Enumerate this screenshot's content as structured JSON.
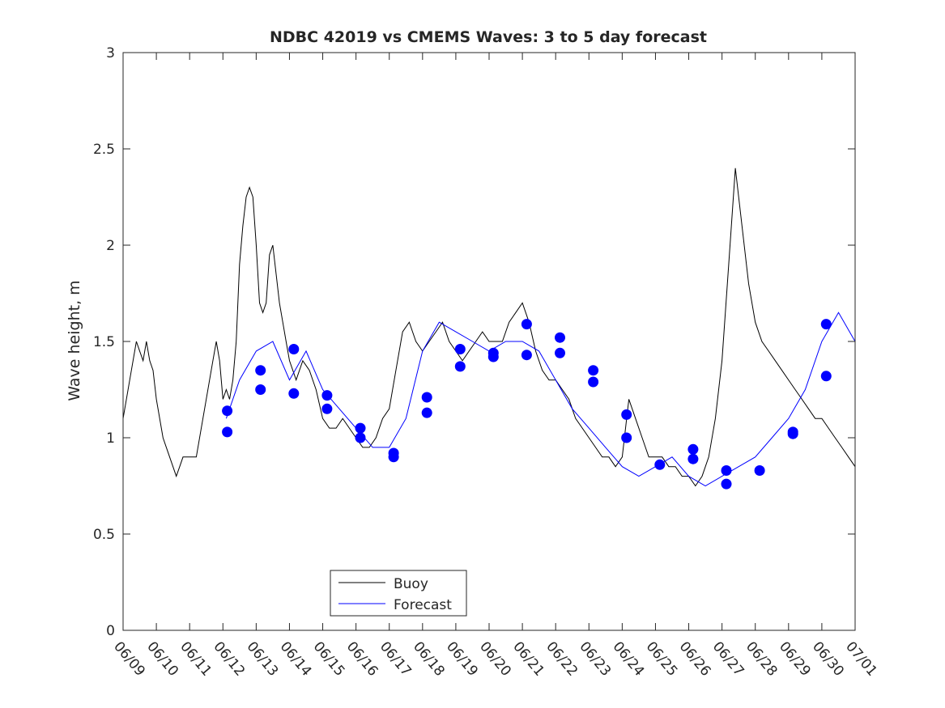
{
  "chart_data": {
    "type": "line",
    "title": "NDBC 42019 vs CMEMS Waves: 3 to 5 day forecast",
    "xlabel": "",
    "ylabel": "Wave height, m",
    "xlim": [
      0,
      22
    ],
    "ylim": [
      0,
      3
    ],
    "grid": false,
    "legend_position": "bottom-center",
    "x_tick_labels": [
      "06/09",
      "06/10",
      "06/11",
      "06/12",
      "06/13",
      "06/14",
      "06/15",
      "06/16",
      "06/17",
      "06/18",
      "06/19",
      "06/20",
      "06/21",
      "06/22",
      "06/23",
      "06/24",
      "06/25",
      "06/26",
      "06/27",
      "06/28",
      "06/29",
      "06/30",
      "07/01"
    ],
    "y_ticks": [
      0,
      0.5,
      1,
      1.5,
      2,
      2.5,
      3
    ],
    "y_tick_labels": [
      "0",
      "0.5",
      "1",
      "1.5",
      "2",
      "2.5",
      "3"
    ],
    "x_unit": "days since 06/09",
    "series": [
      {
        "name": "Buoy",
        "color": "#000000",
        "x": [
          0,
          0.1,
          0.2,
          0.3,
          0.4,
          0.5,
          0.6,
          0.7,
          0.8,
          0.9,
          1.0,
          1.2,
          1.3,
          1.4,
          1.5,
          1.6,
          1.7,
          1.8,
          2.0,
          2.2,
          2.4,
          2.5,
          2.6,
          2.7,
          2.8,
          2.9,
          3.0,
          3.1,
          3.2,
          3.3,
          3.4,
          3.5,
          3.6,
          3.7,
          3.8,
          3.9,
          4.0,
          4.1,
          4.2,
          4.3,
          4.4,
          4.5,
          4.6,
          4.7,
          4.8,
          4.9,
          5.0,
          5.2,
          5.4,
          5.6,
          5.8,
          6.0,
          6.2,
          6.4,
          6.6,
          6.8,
          7.0,
          7.2,
          7.4,
          7.6,
          7.8,
          8.0,
          8.2,
          8.4,
          8.6,
          8.8,
          9.0,
          9.2,
          9.4,
          9.6,
          9.8,
          10.0,
          10.2,
          10.4,
          10.6,
          10.8,
          11.0,
          11.2,
          11.4,
          11.6,
          11.8,
          12.0,
          12.2,
          12.4,
          12.6,
          12.8,
          13.0,
          13.2,
          13.4,
          13.6,
          13.8,
          14.0,
          14.2,
          14.4,
          14.6,
          14.8,
          15.0,
          15.2,
          15.4,
          15.6,
          15.8,
          16.0,
          16.2,
          16.4,
          16.6,
          16.8,
          17.0,
          17.2,
          17.4,
          17.6,
          17.8,
          18.0,
          18.2,
          18.4,
          18.6,
          18.8,
          19.0,
          19.2,
          19.4,
          19.6,
          19.8,
          20.0,
          20.2,
          20.4,
          20.6,
          20.8,
          21.0,
          21.2,
          21.4,
          21.6,
          21.8,
          22.0
        ],
        "y": [
          1.1,
          1.2,
          1.3,
          1.4,
          1.5,
          1.45,
          1.4,
          1.5,
          1.4,
          1.35,
          1.2,
          1.0,
          0.95,
          0.9,
          0.85,
          0.8,
          0.85,
          0.9,
          0.9,
          0.9,
          1.1,
          1.2,
          1.3,
          1.4,
          1.5,
          1.4,
          1.2,
          1.25,
          1.2,
          1.3,
          1.5,
          1.9,
          2.1,
          2.25,
          2.3,
          2.25,
          2.0,
          1.7,
          1.65,
          1.7,
          1.95,
          2.0,
          1.85,
          1.7,
          1.6,
          1.5,
          1.4,
          1.3,
          1.4,
          1.35,
          1.25,
          1.1,
          1.05,
          1.05,
          1.1,
          1.05,
          1.0,
          0.95,
          0.95,
          1.0,
          1.1,
          1.15,
          1.35,
          1.55,
          1.6,
          1.5,
          1.45,
          1.5,
          1.55,
          1.6,
          1.5,
          1.45,
          1.4,
          1.45,
          1.5,
          1.55,
          1.5,
          1.5,
          1.5,
          1.6,
          1.65,
          1.7,
          1.6,
          1.45,
          1.35,
          1.3,
          1.3,
          1.25,
          1.2,
          1.1,
          1.05,
          1.0,
          0.95,
          0.9,
          0.9,
          0.85,
          0.9,
          1.2,
          1.1,
          1.0,
          0.9,
          0.9,
          0.9,
          0.85,
          0.85,
          0.8,
          0.8,
          0.75,
          0.8,
          0.9,
          1.1,
          1.4,
          1.9,
          2.4,
          2.1,
          1.8,
          1.6,
          1.5,
          1.45,
          1.4,
          1.35,
          1.3,
          1.25,
          1.2,
          1.15,
          1.1,
          1.1,
          1.05,
          1.0,
          0.95,
          0.9,
          0.85
        ]
      },
      {
        "name": "Forecast",
        "color": "#0000ff",
        "x": [
          3.1,
          3.5,
          4.0,
          4.5,
          5.0,
          5.5,
          6.0,
          6.5,
          7.0,
          7.5,
          8.0,
          8.5,
          9.0,
          9.5,
          10.0,
          10.5,
          11.0,
          11.5,
          12.0,
          12.5,
          13.0,
          13.5,
          14.0,
          14.5,
          15.0,
          15.5,
          16.0,
          16.5,
          17.0,
          17.5,
          18.0,
          18.5,
          19.0,
          19.5,
          20.0,
          20.5,
          21.0,
          21.5,
          22.0
        ],
        "y": [
          1.1,
          1.3,
          1.45,
          1.5,
          1.3,
          1.45,
          1.25,
          1.15,
          1.05,
          0.95,
          0.95,
          1.1,
          1.45,
          1.6,
          1.55,
          1.5,
          1.45,
          1.5,
          1.5,
          1.45,
          1.3,
          1.15,
          1.05,
          0.95,
          0.85,
          0.8,
          0.85,
          0.9,
          0.8,
          0.75,
          0.8,
          0.85,
          0.9,
          1.0,
          1.1,
          1.25,
          1.5,
          1.65,
          1.5
        ]
      }
    ],
    "markers": {
      "color": "#0000ff",
      "points": [
        {
          "x": 3.13,
          "y": 1.03
        },
        {
          "x": 3.13,
          "y": 1.14
        },
        {
          "x": 4.13,
          "y": 1.35
        },
        {
          "x": 4.13,
          "y": 1.25
        },
        {
          "x": 5.13,
          "y": 1.46
        },
        {
          "x": 5.13,
          "y": 1.23
        },
        {
          "x": 6.13,
          "y": 1.22
        },
        {
          "x": 6.13,
          "y": 1.15
        },
        {
          "x": 7.13,
          "y": 1.05
        },
        {
          "x": 7.13,
          "y": 1.0
        },
        {
          "x": 8.13,
          "y": 0.92
        },
        {
          "x": 8.13,
          "y": 0.9
        },
        {
          "x": 9.13,
          "y": 1.21
        },
        {
          "x": 9.13,
          "y": 1.13
        },
        {
          "x": 10.13,
          "y": 1.46
        },
        {
          "x": 10.13,
          "y": 1.37
        },
        {
          "x": 11.13,
          "y": 1.44
        },
        {
          "x": 11.13,
          "y": 1.42
        },
        {
          "x": 12.13,
          "y": 1.59
        },
        {
          "x": 12.13,
          "y": 1.43
        },
        {
          "x": 13.13,
          "y": 1.52
        },
        {
          "x": 13.13,
          "y": 1.44
        },
        {
          "x": 14.13,
          "y": 1.35
        },
        {
          "x": 14.13,
          "y": 1.29
        },
        {
          "x": 15.13,
          "y": 1.12
        },
        {
          "x": 15.13,
          "y": 1.0
        },
        {
          "x": 16.13,
          "y": 0.86
        },
        {
          "x": 17.13,
          "y": 0.94
        },
        {
          "x": 17.13,
          "y": 0.89
        },
        {
          "x": 18.13,
          "y": 0.83
        },
        {
          "x": 18.13,
          "y": 0.76
        },
        {
          "x": 19.13,
          "y": 0.83
        },
        {
          "x": 20.13,
          "y": 1.03
        },
        {
          "x": 20.13,
          "y": 1.02
        },
        {
          "x": 21.13,
          "y": 1.59
        },
        {
          "x": 21.13,
          "y": 1.32
        }
      ]
    }
  }
}
